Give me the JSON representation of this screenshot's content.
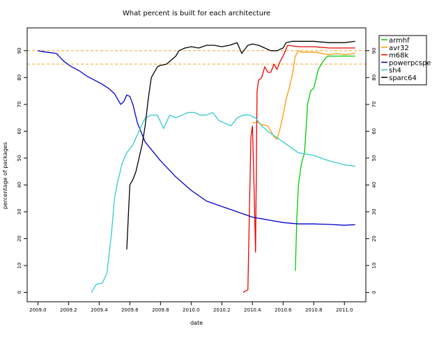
{
  "chart_data": {
    "type": "line",
    "title": "What percent is built for each architecture",
    "xlabel": "date",
    "ylabel": "percentage of packages",
    "xlim": [
      2008.93,
      2011.14
    ],
    "ylim": [
      -3.5,
      98.5
    ],
    "x_ticks": [
      2009.0,
      2009.2,
      2009.4,
      2009.6,
      2009.8,
      2010.0,
      2010.2,
      2010.4,
      2010.6,
      2010.8,
      2011.0
    ],
    "x_tick_labels": [
      "2009.0",
      "2009.2",
      "2009.4",
      "2009.6",
      "2009.8",
      "2010.0",
      "2010.2",
      "2010.4",
      "2010.6",
      "2010.8",
      "2011.0"
    ],
    "y_ticks": [
      0,
      10,
      20,
      30,
      40,
      50,
      60,
      70,
      80,
      90
    ],
    "y_tick_labels": [
      "0",
      "10",
      "20",
      "30",
      "40",
      "50",
      "60",
      "70",
      "80",
      "90"
    ],
    "reference_lines": [
      {
        "y": 90,
        "color": "#f5a623",
        "style": "dashed"
      },
      {
        "y": 85,
        "color": "#f5a623",
        "style": "dashed"
      }
    ],
    "legend_position": "top-right outside",
    "series": [
      {
        "name": "armhf",
        "color": "#00cc00",
        "x": [
          2010.68,
          2010.69,
          2010.7,
          2010.71,
          2010.72,
          2010.74,
          2010.76,
          2010.78,
          2010.8,
          2010.83,
          2010.86,
          2010.89,
          2010.92,
          2011.0,
          2011.07
        ],
        "y": [
          8,
          28,
          40,
          44,
          48,
          52,
          70,
          75,
          76,
          83,
          86,
          88,
          88,
          88,
          88
        ]
      },
      {
        "name": "avr32",
        "color": "#ff9900",
        "x": [
          2010.4,
          2010.43,
          2010.46,
          2010.5,
          2010.54,
          2010.56,
          2010.58,
          2010.6,
          2010.62,
          2010.64,
          2010.66,
          2010.68,
          2010.7,
          2010.72,
          2010.76,
          2010.8,
          2010.85,
          2010.9,
          2010.95,
          2011.0,
          2011.07
        ],
        "y": [
          63,
          63.5,
          62.5,
          62,
          58,
          57,
          61,
          66,
          72,
          76,
          81,
          88,
          90,
          89.5,
          89.5,
          89.5,
          89,
          88.5,
          89,
          88.5,
          89
        ]
      },
      {
        "name": "m68k",
        "color": "#ee0000",
        "x": [
          2010.34,
          2010.37,
          2010.38,
          2010.39,
          2010.4,
          2010.41,
          2010.42,
          2010.43,
          2010.44,
          2010.46,
          2010.48,
          2010.5,
          2010.52,
          2010.54,
          2010.56,
          2010.58,
          2010.6,
          2010.63,
          2010.7,
          2010.8,
          2010.9,
          2011.0,
          2011.07
        ],
        "y": [
          0,
          1,
          30,
          58,
          62,
          40,
          15,
          75,
          79,
          80,
          84,
          82,
          82,
          85,
          83,
          86,
          88,
          92,
          91.5,
          91.5,
          91,
          91,
          91
        ]
      },
      {
        "name": "powerpcspe",
        "color": "#0000cc",
        "x": [
          2009.0,
          2009.05,
          2009.12,
          2009.17,
          2009.22,
          2009.27,
          2009.32,
          2009.37,
          2009.42,
          2009.46,
          2009.5,
          2009.54,
          2009.56,
          2009.58,
          2009.6,
          2009.62,
          2009.65,
          2009.7,
          2009.8,
          2009.9,
          2010.0,
          2010.1,
          2010.2,
          2010.3,
          2010.4,
          2010.5,
          2010.6,
          2010.7,
          2010.8,
          2010.9,
          2011.0,
          2011.07
        ],
        "y": [
          90,
          89.5,
          89,
          86,
          84,
          82.5,
          80.5,
          79,
          77.5,
          76,
          74,
          70,
          71,
          73.5,
          73,
          70,
          63,
          56,
          49,
          43,
          38,
          34,
          32,
          30,
          28,
          27,
          26,
          25.5,
          25.5,
          25.3,
          25,
          25.2
        ]
      },
      {
        "name": "sh4",
        "color": "#33cccc",
        "x": [
          2009.35,
          2009.38,
          2009.42,
          2009.45,
          2009.48,
          2009.5,
          2009.52,
          2009.55,
          2009.58,
          2009.62,
          2009.66,
          2009.7,
          2009.74,
          2009.78,
          2009.82,
          2009.86,
          2009.9,
          2009.94,
          2009.98,
          2010.02,
          2010.06,
          2010.1,
          2010.14,
          2010.18,
          2010.22,
          2010.26,
          2010.3,
          2010.34,
          2010.38,
          2010.42,
          2010.46,
          2010.5,
          2010.55,
          2010.6,
          2010.7,
          2010.8,
          2010.9,
          2011.0,
          2011.07
        ],
        "y": [
          0,
          3,
          3.5,
          7,
          22,
          35,
          41,
          48,
          52,
          55,
          60,
          65,
          66,
          66,
          61,
          66,
          65,
          66,
          67,
          67,
          66,
          66,
          67,
          64,
          63,
          62,
          65,
          66,
          66,
          65,
          62,
          60,
          58,
          56,
          52,
          51,
          49,
          47.5,
          47
        ]
      },
      {
        "name": "sparc64",
        "color": "#000000",
        "x": [
          2009.58,
          2009.6,
          2009.62,
          2009.64,
          2009.66,
          2009.68,
          2009.7,
          2009.72,
          2009.74,
          2009.76,
          2009.78,
          2009.8,
          2009.84,
          2009.88,
          2009.9,
          2009.92,
          2009.96,
          2010.0,
          2010.05,
          2010.1,
          2010.15,
          2010.2,
          2010.25,
          2010.3,
          2010.33,
          2010.37,
          2010.4,
          2010.44,
          2010.48,
          2010.52,
          2010.56,
          2010.6,
          2010.62,
          2010.66,
          2010.72,
          2010.8,
          2010.9,
          2011.0,
          2011.07
        ],
        "y": [
          16,
          40,
          42,
          45,
          50,
          55,
          62,
          72,
          80,
          82,
          84,
          84.5,
          85,
          87,
          88,
          90,
          91,
          91.5,
          91,
          92,
          92,
          91.5,
          92,
          93,
          89,
          92,
          92.5,
          92,
          91,
          90,
          90,
          91,
          93,
          93.5,
          93.5,
          93.5,
          93,
          93,
          93.5
        ]
      }
    ]
  }
}
